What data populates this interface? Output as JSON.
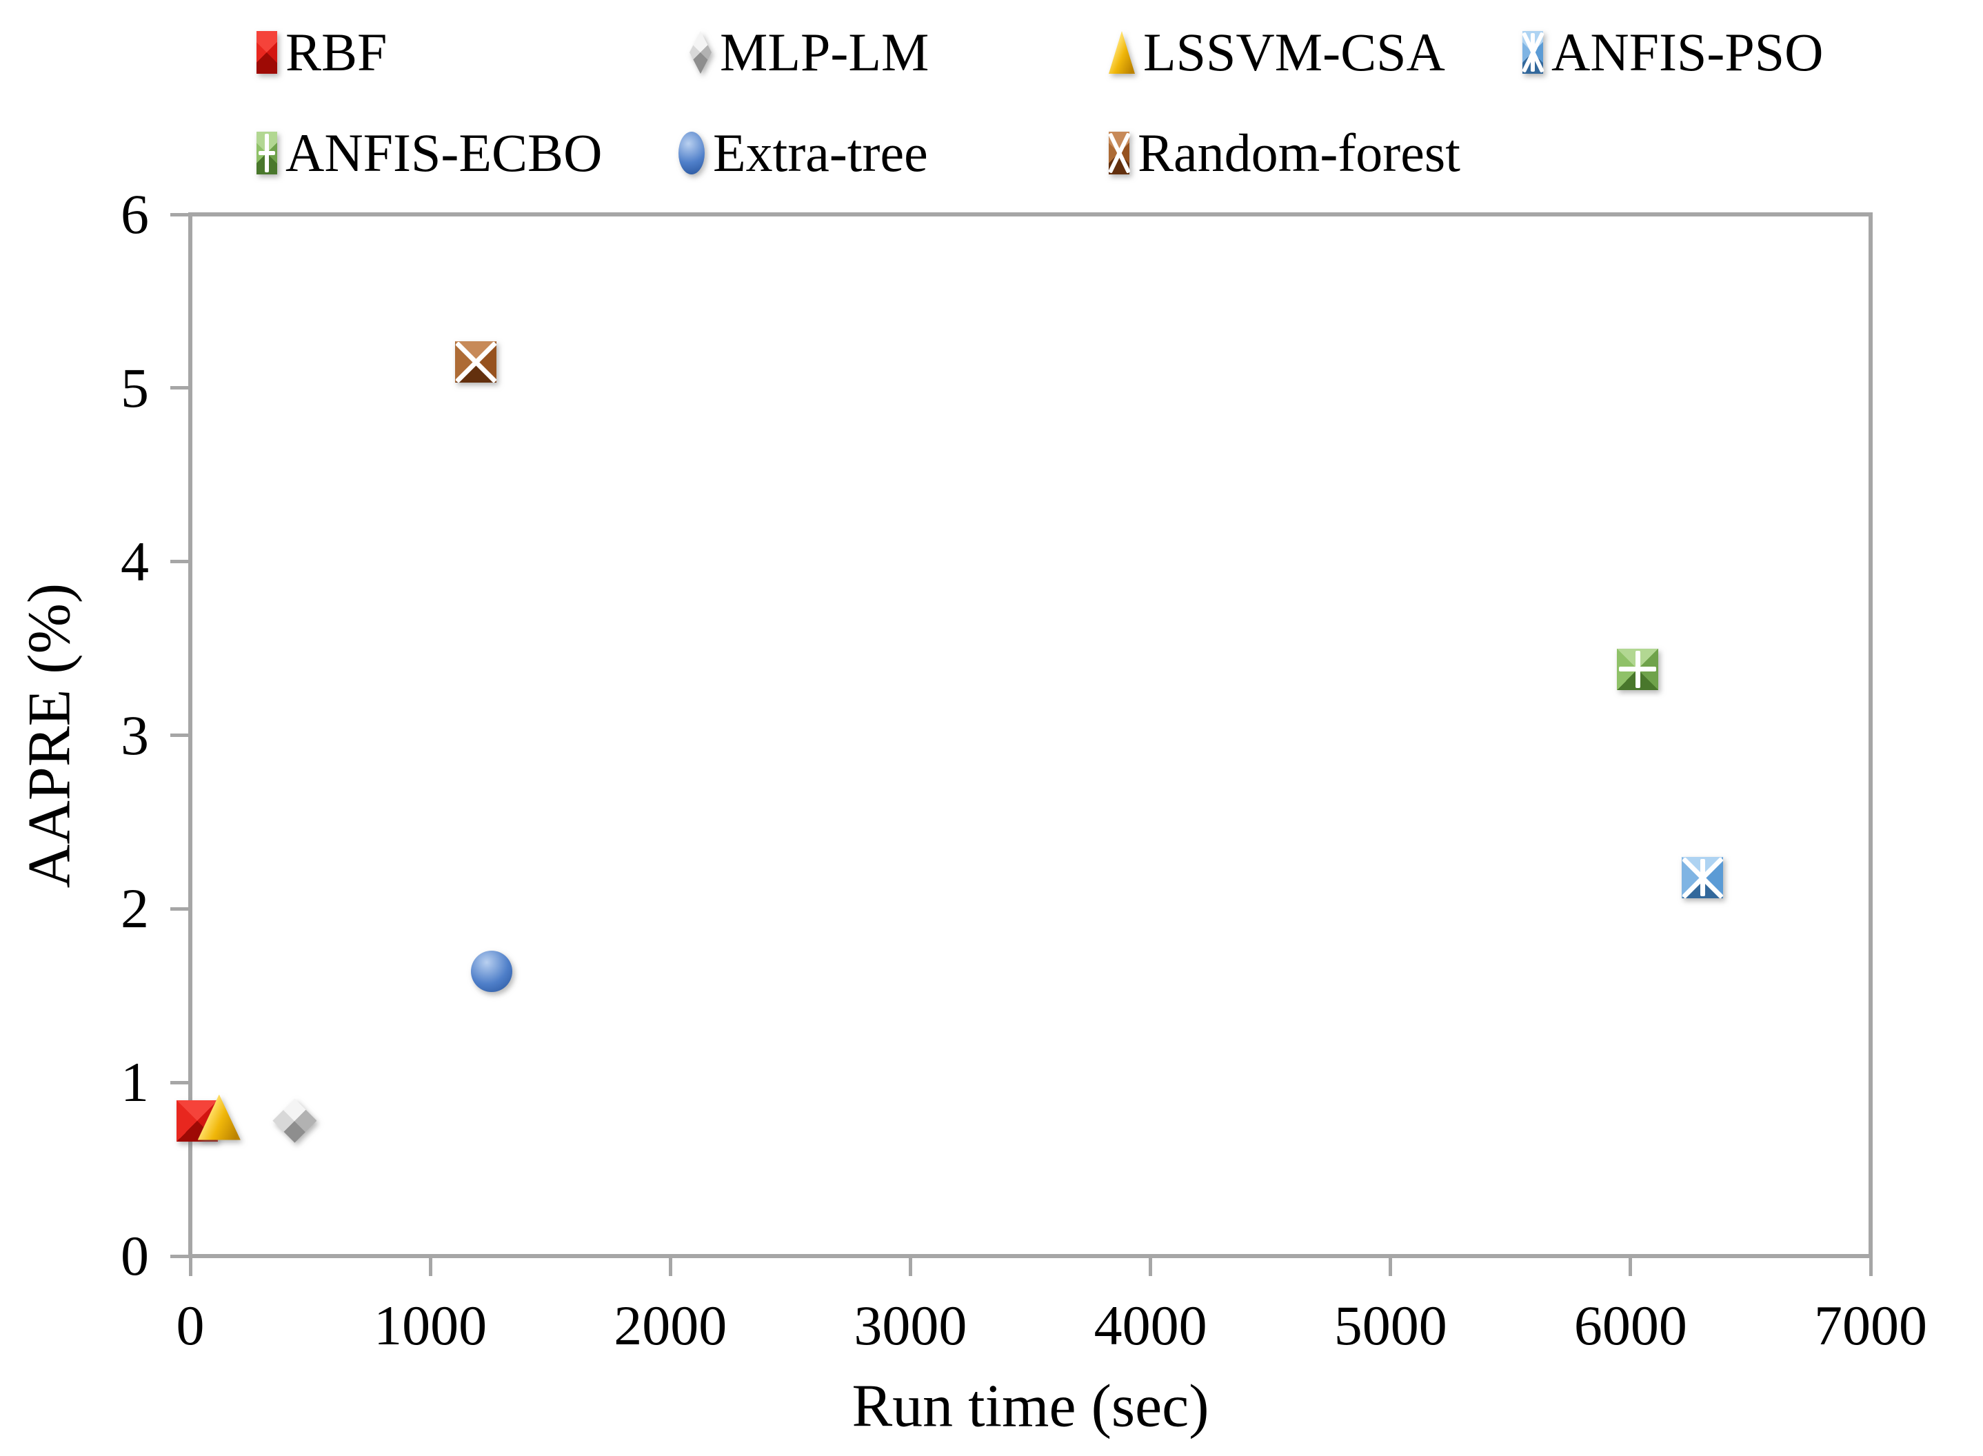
{
  "page": {
    "background": "#ffffff"
  },
  "axes": {
    "frame_color": "#a6a6a6",
    "x": {
      "title": "Run time (sec)",
      "values": [
        0,
        1000,
        2000,
        3000,
        4000,
        5000,
        6000,
        7000
      ],
      "ticks": [
        "0",
        "1000",
        "2000",
        "3000",
        "4000",
        "5000",
        "6000",
        "7000"
      ]
    },
    "y": {
      "title": "AAPRE (%)",
      "values": [
        0,
        1,
        2,
        3,
        4,
        5,
        6
      ],
      "ticks": [
        "0",
        "1",
        "2",
        "3",
        "4",
        "5",
        "6"
      ]
    }
  },
  "chart_data": {
    "type": "scatter",
    "title": "",
    "xlabel": "Run time (sec)",
    "ylabel": "AAPRE (%)",
    "xlim": [
      0,
      7000
    ],
    "ylim": [
      0,
      6
    ],
    "grid": false,
    "legend_position": "top",
    "legend_rows": [
      [
        "RBF",
        "MLP-LM",
        "LSSVM-CSA",
        "ANFIS-PSO"
      ],
      [
        "ANFIS-ECBO",
        "Extra-tree",
        "Random-forest"
      ]
    ],
    "series": [
      {
        "name": "RBF",
        "marker": "square",
        "overlay": "none",
        "x": 30,
        "y": 0.78,
        "colors": {
          "light": "#f5433a",
          "midR": "#d31510",
          "dark": "#9e0a05",
          "midL": "#e8271f"
        }
      },
      {
        "name": "MLP-LM",
        "marker": "diamond",
        "overlay": "none",
        "x": 435,
        "y": 0.78,
        "colors": {
          "light": "#f4f4f4",
          "midR": "#b2b2b2",
          "dark": "#8e8e8e",
          "midL": "#d8d8d8"
        }
      },
      {
        "name": "LSSVM-CSA",
        "marker": "triangle",
        "overlay": "none",
        "x": 120,
        "y": 0.8,
        "colors": {
          "light": "#ffdf66",
          "midR": "#f0b70a",
          "dark": "#bc8300",
          "midL": "#ffcf33"
        }
      },
      {
        "name": "ANFIS-PSO",
        "marker": "square",
        "overlay": "asterisk",
        "x": 6300,
        "y": 2.18,
        "colors": {
          "light": "#aed3f2",
          "midR": "#5b9bd5",
          "dark": "#33689b",
          "midL": "#7fb4e3"
        }
      },
      {
        "name": "ANFIS-ECBO",
        "marker": "square",
        "overlay": "plus",
        "x": 6030,
        "y": 3.38,
        "colors": {
          "light": "#b2d792",
          "midR": "#6fa24b",
          "dark": "#49772c",
          "midL": "#8fc168"
        }
      },
      {
        "name": "Extra-tree",
        "marker": "circle",
        "overlay": "none",
        "x": 1255,
        "y": 1.64,
        "colors": {
          "light": "#b9d0f0",
          "midR": "#4f7fc9",
          "dark": "#2b58a0",
          "midL": "#6f95d8"
        }
      },
      {
        "name": "Random-forest",
        "marker": "square",
        "overlay": "x",
        "x": 1190,
        "y": 5.15,
        "colors": {
          "light": "#c78a59",
          "midR": "#96521f",
          "dark": "#63300e",
          "midL": "#ad6b35"
        }
      }
    ]
  }
}
